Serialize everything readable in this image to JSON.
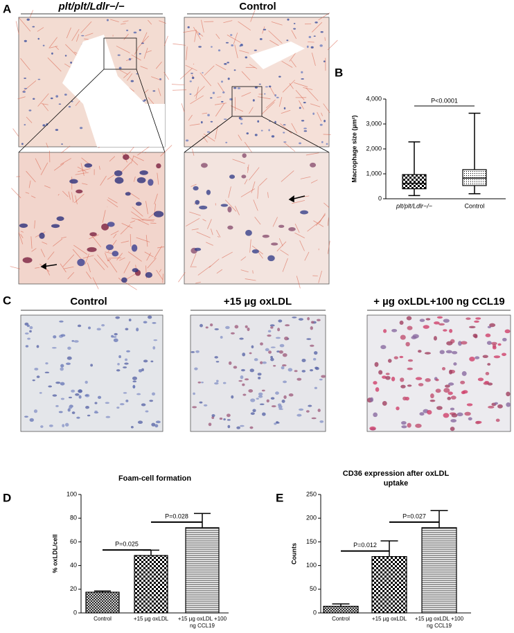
{
  "panel_labels": [
    "A",
    "B",
    "C",
    "D",
    "E"
  ],
  "panel_a": {
    "headers": [
      "plt/plt/Ldlr−/−",
      "Control"
    ]
  },
  "panel_c": {
    "headers": [
      "Control",
      "+15 µg oxLDL",
      "+ µg oxLDL+100 ng CCL19"
    ]
  },
  "chart_data": [
    {
      "type": "box",
      "y_label": "Macrophage size (µm²)",
      "categories": [
        "plt/plt/Ldlr−/−",
        "Control"
      ],
      "min": [
        130,
        200
      ],
      "q1": [
        400,
        530
      ],
      "median": [
        620,
        830
      ],
      "q3": [
        970,
        1170
      ],
      "max": [
        2280,
        3430
      ],
      "ylim": [
        0,
        4000
      ],
      "yticks": [
        0,
        {
          "value": 1000,
          "label": "1,000"
        },
        {
          "value": 2000,
          "label": "2,000"
        },
        {
          "value": 3000,
          "label": "3,000"
        },
        {
          "value": 4000,
          "label": "4,000"
        }
      ],
      "annotations": [
        "P<0.0001"
      ]
    },
    {
      "type": "bar",
      "title": "Foam-cell formation",
      "y_label": "% oxLDL/cell",
      "categories": [
        "Control",
        "+15 µg oxLDL",
        "+15 µg oxLDL +100 ng CCL19"
      ],
      "values": [
        17.5,
        48.5,
        72
      ],
      "errors": [
        1,
        4.5,
        12
      ],
      "ylim": [
        0,
        100
      ],
      "yticks": [
        0,
        20,
        40,
        60,
        80,
        100
      ],
      "annotations": [
        "P=0.025",
        "P=0.028"
      ]
    },
    {
      "type": "bar",
      "title": "CD36 expression after oxLDL uptake",
      "y_label": "Counts",
      "categories": [
        "Control",
        "+15 µg oxLDL",
        "+15 µg oxLDL +100 ng CCL19"
      ],
      "values": [
        14,
        119,
        180
      ],
      "errors": [
        5,
        33,
        36
      ],
      "ylim": [
        0,
        250
      ],
      "yticks": [
        0,
        50,
        100,
        150,
        200,
        250
      ],
      "annotations": [
        "P=0.012",
        "P=0.027"
      ]
    }
  ]
}
